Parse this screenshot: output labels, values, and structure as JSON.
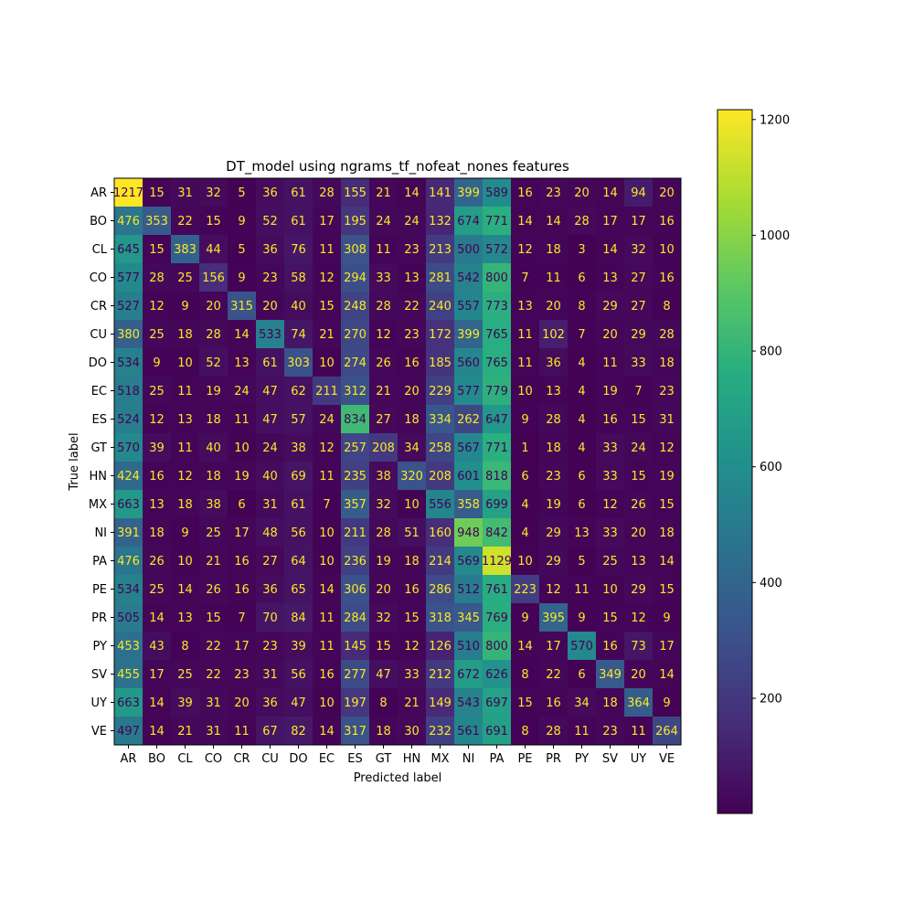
{
  "chart_data": {
    "type": "heatmap",
    "title": "DT_model using ngrams_tf_nofeat_nones features",
    "xlabel": "Predicted label",
    "ylabel": "True label",
    "x_categories": [
      "AR",
      "BO",
      "CL",
      "CO",
      "CR",
      "CU",
      "DO",
      "EC",
      "ES",
      "GT",
      "HN",
      "MX",
      "NI",
      "PA",
      "PE",
      "PR",
      "PY",
      "SV",
      "UY",
      "VE"
    ],
    "y_categories": [
      "AR",
      "BO",
      "CL",
      "CO",
      "CR",
      "CU",
      "DO",
      "EC",
      "ES",
      "GT",
      "HN",
      "MX",
      "NI",
      "PA",
      "PE",
      "PR",
      "PY",
      "SV",
      "UY",
      "VE"
    ],
    "values": [
      [
        1217,
        15,
        31,
        32,
        5,
        36,
        61,
        28,
        155,
        21,
        14,
        141,
        399,
        589,
        16,
        23,
        20,
        14,
        94,
        20
      ],
      [
        476,
        353,
        22,
        15,
        9,
        52,
        61,
        17,
        195,
        24,
        24,
        132,
        674,
        771,
        14,
        14,
        28,
        17,
        17,
        16
      ],
      [
        645,
        15,
        383,
        44,
        5,
        36,
        76,
        11,
        308,
        11,
        23,
        213,
        500,
        572,
        12,
        18,
        3,
        14,
        32,
        10
      ],
      [
        577,
        28,
        25,
        156,
        9,
        23,
        58,
        12,
        294,
        33,
        13,
        281,
        542,
        800,
        7,
        11,
        6,
        13,
        27,
        16
      ],
      [
        527,
        12,
        9,
        20,
        315,
        20,
        40,
        15,
        248,
        28,
        22,
        240,
        557,
        773,
        13,
        20,
        8,
        29,
        27,
        8
      ],
      [
        380,
        25,
        18,
        28,
        14,
        533,
        74,
        21,
        270,
        12,
        23,
        172,
        399,
        765,
        11,
        102,
        7,
        20,
        29,
        28
      ],
      [
        534,
        9,
        10,
        52,
        13,
        61,
        303,
        10,
        274,
        26,
        16,
        185,
        560,
        765,
        11,
        36,
        4,
        11,
        33,
        18
      ],
      [
        518,
        25,
        11,
        19,
        24,
        47,
        62,
        211,
        312,
        21,
        20,
        229,
        577,
        779,
        10,
        13,
        4,
        19,
        7,
        23
      ],
      [
        524,
        12,
        13,
        18,
        11,
        47,
        57,
        24,
        834,
        27,
        18,
        334,
        262,
        647,
        9,
        28,
        4,
        16,
        15,
        31
      ],
      [
        570,
        39,
        11,
        40,
        10,
        24,
        38,
        12,
        257,
        208,
        34,
        258,
        567,
        771,
        1,
        18,
        4,
        33,
        24,
        12
      ],
      [
        424,
        16,
        12,
        18,
        19,
        40,
        69,
        11,
        235,
        38,
        320,
        208,
        601,
        818,
        6,
        23,
        6,
        33,
        15,
        19
      ],
      [
        663,
        13,
        18,
        38,
        6,
        31,
        61,
        7,
        357,
        32,
        10,
        556,
        358,
        699,
        4,
        19,
        6,
        12,
        26,
        15
      ],
      [
        391,
        18,
        9,
        25,
        17,
        48,
        56,
        10,
        211,
        28,
        51,
        160,
        948,
        842,
        4,
        29,
        13,
        33,
        20,
        18
      ],
      [
        476,
        26,
        10,
        21,
        16,
        27,
        64,
        10,
        236,
        19,
        18,
        214,
        569,
        1129,
        10,
        29,
        5,
        25,
        13,
        14
      ],
      [
        534,
        25,
        14,
        26,
        16,
        36,
        65,
        14,
        306,
        20,
        16,
        286,
        512,
        761,
        223,
        12,
        11,
        10,
        29,
        15
      ],
      [
        505,
        14,
        13,
        15,
        7,
        70,
        84,
        11,
        284,
        32,
        15,
        318,
        345,
        769,
        9,
        395,
        9,
        15,
        12,
        9
      ],
      [
        453,
        43,
        8,
        22,
        17,
        23,
        39,
        11,
        145,
        15,
        12,
        126,
        510,
        800,
        14,
        17,
        570,
        16,
        73,
        17
      ],
      [
        455,
        17,
        25,
        22,
        23,
        31,
        56,
        16,
        277,
        47,
        33,
        212,
        672,
        626,
        8,
        22,
        6,
        349,
        20,
        14
      ],
      [
        663,
        14,
        39,
        31,
        20,
        36,
        47,
        10,
        197,
        8,
        21,
        149,
        543,
        697,
        15,
        16,
        34,
        18,
        364,
        9
      ],
      [
        497,
        14,
        21,
        31,
        11,
        67,
        82,
        14,
        317,
        18,
        30,
        232,
        561,
        691,
        8,
        28,
        11,
        23,
        11,
        264
      ]
    ],
    "color_min": 1,
    "color_max": 1217,
    "colormap": "viridis",
    "colorbar_ticks": [
      200,
      400,
      600,
      800,
      1000,
      1200
    ],
    "legend": "colorbar-right",
    "grid": false
  }
}
